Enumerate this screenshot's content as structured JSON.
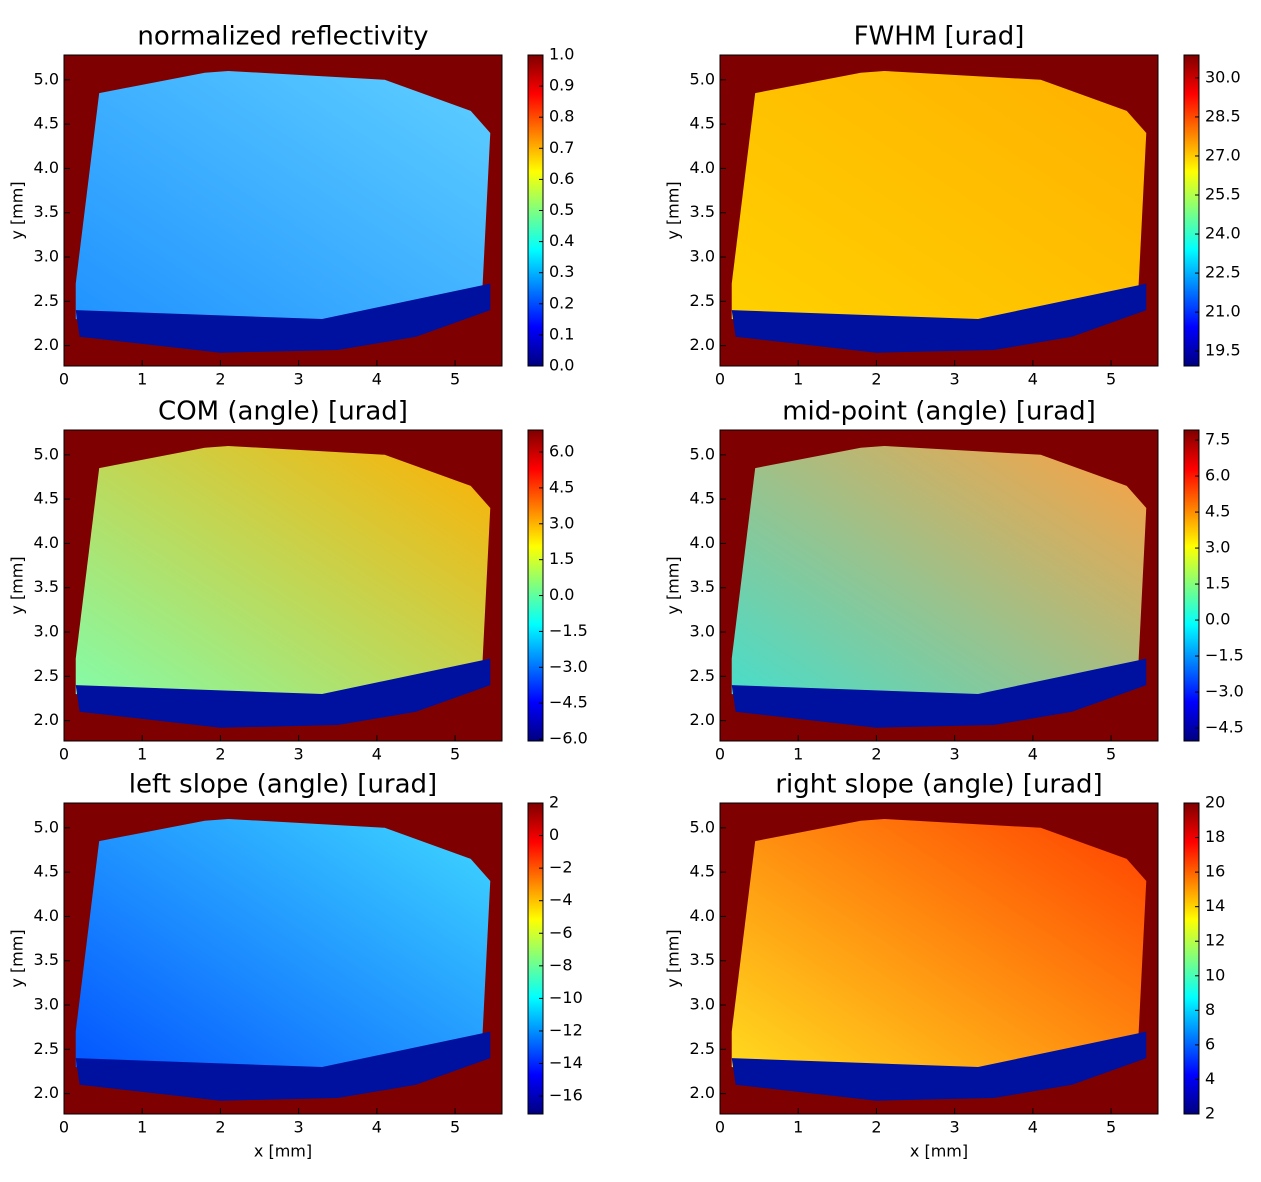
{
  "chart_data": [
    {
      "type": "heatmap",
      "title": "normalized reflectivity",
      "ylabel": "y [mm]",
      "colormap": "jet",
      "xlim": [
        0,
        5.6
      ],
      "ylim": [
        1.77,
        5.28
      ],
      "xticks": [
        0,
        1,
        2,
        3,
        4,
        5
      ],
      "yticks": [
        {
          "value": 2,
          "label": "2.0"
        },
        2.5,
        {
          "value": 3,
          "label": "3.0"
        },
        3.5,
        {
          "value": 4,
          "label": "4.0"
        },
        4.5,
        {
          "value": 5,
          "label": "5.0"
        }
      ],
      "clim": [
        0,
        1
      ],
      "cticks": [
        {
          "value": 0,
          "label": "0.0"
        },
        0.1,
        0.2,
        0.3,
        0.4,
        0.5,
        0.6,
        0.7,
        0.8,
        0.9,
        {
          "value": 1,
          "label": "1.0"
        }
      ]
    },
    {
      "type": "heatmap",
      "title": "FWHM [urad]",
      "ylabel": "y [mm]",
      "colormap": "jet",
      "xlim": [
        0,
        5.6
      ],
      "ylim": [
        1.77,
        5.28
      ],
      "xticks": [
        0,
        1,
        2,
        3,
        4,
        5
      ],
      "yticks": [
        {
          "value": 2,
          "label": "2.0"
        },
        2.5,
        {
          "value": 3,
          "label": "3.0"
        },
        3.5,
        {
          "value": 4,
          "label": "4.0"
        },
        4.5,
        {
          "value": 5,
          "label": "5.0"
        }
      ],
      "clim": [
        18.93,
        30.88
      ],
      "cticks": [
        19.5,
        {
          "value": 21,
          "label": "21.0"
        },
        22.5,
        {
          "value": 24,
          "label": "24.0"
        },
        25.5,
        {
          "value": 27,
          "label": "27.0"
        },
        28.5,
        {
          "value": 30,
          "label": "30.0"
        }
      ]
    },
    {
      "type": "heatmap",
      "title": "COM (angle) [urad]",
      "ylabel": "y [mm]",
      "colormap": "jet",
      "xlim": [
        0,
        5.6
      ],
      "ylim": [
        1.77,
        5.28
      ],
      "xticks": [
        0,
        1,
        2,
        3,
        4,
        5
      ],
      "yticks": [
        {
          "value": 2,
          "label": "2.0"
        },
        2.5,
        {
          "value": 3,
          "label": "3.0"
        },
        3.5,
        {
          "value": 4,
          "label": "4.0"
        },
        4.5,
        {
          "value": 5,
          "label": "5.0"
        }
      ],
      "clim": [
        -6.08,
        6.92
      ],
      "cticks": [
        {
          "value": -6,
          "label": "−6.0"
        },
        {
          "value": -4.5,
          "label": "−4.5"
        },
        {
          "value": -3,
          "label": "−3.0"
        },
        {
          "value": -1.5,
          "label": "−1.5"
        },
        {
          "value": 0,
          "label": "0.0"
        },
        1.5,
        {
          "value": 3,
          "label": "3.0"
        },
        4.5,
        {
          "value": 6,
          "label": "6.0"
        }
      ]
    },
    {
      "type": "heatmap",
      "title": "mid-point (angle) [urad]",
      "ylabel": "y [mm]",
      "colormap": "jet",
      "xlim": [
        0,
        5.6
      ],
      "ylim": [
        1.77,
        5.28
      ],
      "xticks": [
        0,
        1,
        2,
        3,
        4,
        5
      ],
      "yticks": [
        {
          "value": 2,
          "label": "2.0"
        },
        2.5,
        {
          "value": 3,
          "label": "3.0"
        },
        3.5,
        {
          "value": 4,
          "label": "4.0"
        },
        4.5,
        {
          "value": 5,
          "label": "5.0"
        }
      ],
      "clim": [
        -5.04,
        7.92
      ],
      "cticks": [
        {
          "value": -4.5,
          "label": "−4.5"
        },
        {
          "value": -3,
          "label": "−3.0"
        },
        {
          "value": -1.5,
          "label": "−1.5"
        },
        {
          "value": 0,
          "label": "0.0"
        },
        1.5,
        {
          "value": 3,
          "label": "3.0"
        },
        4.5,
        {
          "value": 6,
          "label": "6.0"
        },
        7.5
      ]
    },
    {
      "type": "heatmap",
      "title": "left slope (angle) [urad]",
      "xlabel": "x [mm]",
      "ylabel": "y [mm]",
      "colormap": "jet",
      "xlim": [
        0,
        5.6
      ],
      "ylim": [
        1.77,
        5.28
      ],
      "xticks": [
        0,
        1,
        2,
        3,
        4,
        5
      ],
      "yticks": [
        {
          "value": 2,
          "label": "2.0"
        },
        2.5,
        {
          "value": 3,
          "label": "3.0"
        },
        3.5,
        {
          "value": 4,
          "label": "4.0"
        },
        4.5,
        {
          "value": 5,
          "label": "5.0"
        }
      ],
      "clim": [
        -17.1,
        2
      ],
      "cticks": [
        {
          "value": -16,
          "label": "−16"
        },
        {
          "value": -14,
          "label": "−14"
        },
        {
          "value": -12,
          "label": "−12"
        },
        {
          "value": -10,
          "label": "−10"
        },
        {
          "value": -8,
          "label": "−8"
        },
        {
          "value": -6,
          "label": "−6"
        },
        {
          "value": -4,
          "label": "−4"
        },
        {
          "value": -2,
          "label": "−2"
        },
        0,
        2
      ]
    },
    {
      "type": "heatmap",
      "title": "right slope (angle) [urad]",
      "xlabel": "x [mm]",
      "ylabel": "y [mm]",
      "colormap": "jet",
      "xlim": [
        0,
        5.6
      ],
      "ylim": [
        1.77,
        5.28
      ],
      "xticks": [
        0,
        1,
        2,
        3,
        4,
        5
      ],
      "yticks": [
        {
          "value": 2,
          "label": "2.0"
        },
        2.5,
        {
          "value": 3,
          "label": "3.0"
        },
        3.5,
        {
          "value": 4,
          "label": "4.0"
        },
        4.5,
        {
          "value": 5,
          "label": "5.0"
        }
      ],
      "clim": [
        2,
        20
      ],
      "cticks": [
        2,
        4,
        6,
        8,
        10,
        12,
        14,
        16,
        18,
        20
      ]
    }
  ]
}
